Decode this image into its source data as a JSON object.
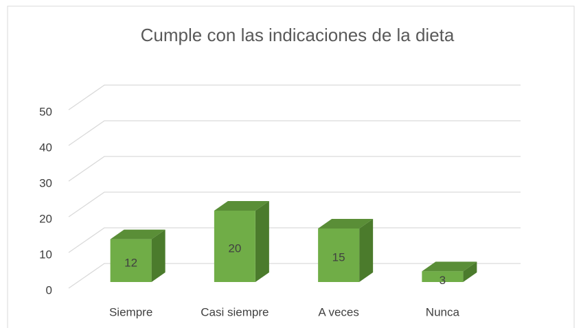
{
  "chart_data": {
    "type": "bar",
    "title": "Cumple con las indicaciones de la dieta",
    "categories": [
      "Siempre",
      "Casi siempre",
      "A veces",
      "Nunca"
    ],
    "values": [
      12,
      20,
      15,
      3
    ],
    "color": "#70ad47",
    "ylim": [
      0,
      50
    ],
    "yticks": [
      0,
      10,
      20,
      30,
      40,
      50
    ],
    "grid": true
  }
}
